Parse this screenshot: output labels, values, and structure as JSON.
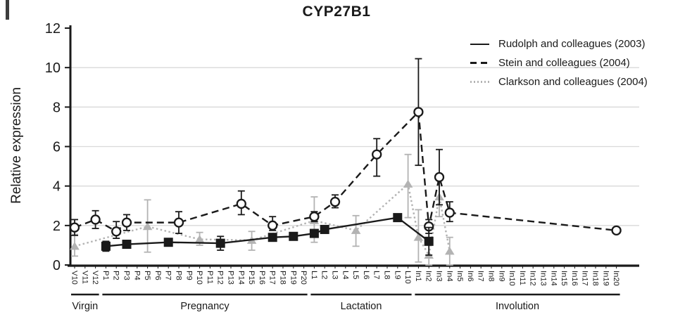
{
  "figure": {
    "title": "CYP27B1",
    "y_axis_label": "Relative expression"
  },
  "chart_data": {
    "type": "line",
    "title": "CYP27B1",
    "xlabel": "",
    "ylabel": "Relative expression",
    "ylim": [
      0,
      12
    ],
    "yticks": [
      0,
      2,
      4,
      6,
      8,
      10,
      12
    ],
    "gridlines_y": [
      2,
      4,
      6,
      8,
      10
    ],
    "grid": "horizontal-light",
    "legend_position": "top-right",
    "categories": [
      "V10",
      "V11",
      "V12",
      "P1",
      "P2",
      "P3",
      "P4",
      "P5",
      "P6",
      "P7",
      "P8",
      "P9",
      "P10",
      "P11",
      "P12",
      "P13",
      "P14",
      "P15",
      "P16",
      "P17",
      "P18",
      "P19",
      "P20",
      "L1",
      "L2",
      "L3",
      "L4",
      "L5",
      "L6",
      "L7",
      "L8",
      "L9",
      "L10",
      "In1",
      "In2",
      "In3",
      "In4",
      "In5",
      "In6",
      "In7",
      "In8",
      "In9",
      "In10",
      "In11",
      "In12",
      "In13",
      "In14",
      "In15",
      "In16",
      "In17",
      "In18",
      "In19",
      "In20"
    ],
    "stage_groups": [
      {
        "label": "Virgin",
        "from": "V10",
        "to": "V12"
      },
      {
        "label": "Pregnancy",
        "from": "P1",
        "to": "P20"
      },
      {
        "label": "Lactation",
        "from": "L1",
        "to": "L10"
      },
      {
        "label": "Involution",
        "from": "In1",
        "to": "In20"
      }
    ],
    "series": [
      {
        "name": "Rudolph and colleagues (2003)",
        "line": "solid",
        "marker": "filled-square",
        "color": "#1a1a1a",
        "points": [
          [
            "P1",
            0.95,
            0.7,
            1.2
          ],
          [
            "P3",
            1.05,
            null,
            null
          ],
          [
            "P7",
            1.15,
            null,
            null
          ],
          [
            "P12",
            1.1,
            0.75,
            1.45
          ],
          [
            "P17",
            1.4,
            null,
            null
          ],
          [
            "P19",
            1.45,
            null,
            null
          ],
          [
            "L1",
            1.6,
            null,
            null
          ],
          [
            "L2",
            1.8,
            null,
            null
          ],
          [
            "L9",
            2.4,
            null,
            null
          ],
          [
            "In2",
            1.2,
            0.5,
            1.9
          ]
        ]
      },
      {
        "name": "Stein and colleagues (2004)",
        "line": "dashed",
        "marker": "open-circle",
        "color": "#1a1a1a",
        "points": [
          [
            "V10",
            1.9,
            1.5,
            2.3
          ],
          [
            "V12",
            2.3,
            1.85,
            2.75
          ],
          [
            "P2",
            1.7,
            1.35,
            2.2
          ],
          [
            "P3",
            2.15,
            1.75,
            2.55
          ],
          [
            "P8",
            2.15,
            1.6,
            2.7
          ],
          [
            "P14",
            3.1,
            2.55,
            3.75
          ],
          [
            "P17",
            2.0,
            1.75,
            2.45
          ],
          [
            "L1",
            2.45,
            2.2,
            2.7
          ],
          [
            "L3",
            3.2,
            2.9,
            3.55
          ],
          [
            "L7",
            5.6,
            4.5,
            6.4
          ],
          [
            "In1",
            7.75,
            5.05,
            10.45
          ],
          [
            "In2",
            1.95,
            1.6,
            2.3
          ],
          [
            "In3",
            4.45,
            3.05,
            5.85
          ],
          [
            "In4",
            2.65,
            2.2,
            3.2
          ],
          [
            "In20",
            1.75,
            null,
            null
          ]
        ]
      },
      {
        "name": "Clarkson and colleagues (2004)",
        "line": "dotted",
        "marker": "filled-triangle",
        "color": "#b3b3b3",
        "points": [
          [
            "V10",
            0.95,
            0.45,
            1.55
          ],
          [
            "P5",
            1.95,
            0.65,
            3.3
          ],
          [
            "P10",
            1.3,
            1.0,
            1.65
          ],
          [
            "P15",
            1.25,
            0.75,
            1.7
          ],
          [
            "L1",
            2.25,
            1.15,
            3.45
          ],
          [
            "L5",
            1.75,
            0.95,
            2.5
          ],
          [
            "L10",
            4.1,
            2.4,
            5.6
          ],
          [
            "In1",
            1.4,
            0.15,
            2.8
          ],
          [
            "In2",
            0.5,
            0.0,
            1.25
          ],
          [
            "In3",
            3.45,
            2.45,
            4.5
          ],
          [
            "In4",
            0.7,
            0.0,
            1.4
          ]
        ]
      }
    ]
  }
}
